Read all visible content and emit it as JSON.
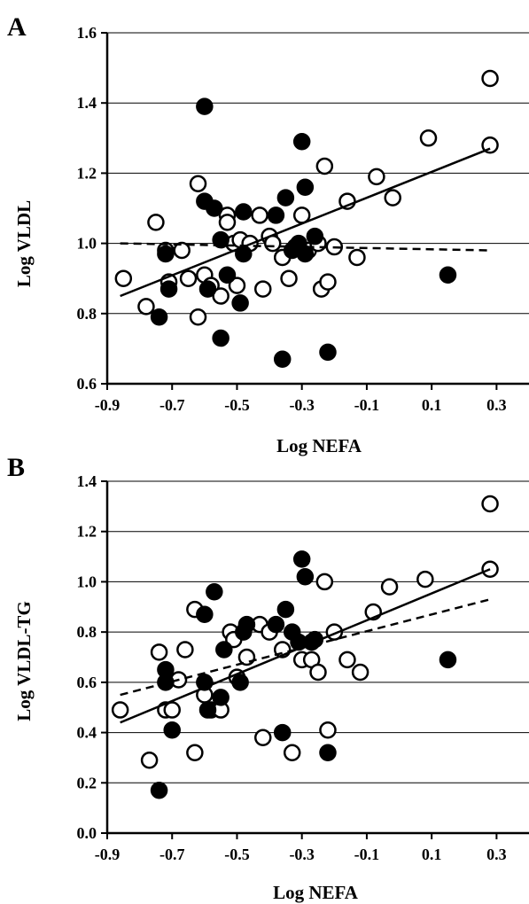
{
  "colors": {
    "axis": "#000000",
    "grid": "#000000",
    "open_marker_fill": "#ffffff",
    "filled_marker_fill": "#000000"
  },
  "chart_data": [
    {
      "panel_label": "A",
      "type": "scatter",
      "xlabel": "Log NEFA",
      "ylabel": "Log VLDL",
      "xlim": [
        -0.9,
        0.4
      ],
      "ylim": [
        0.6,
        1.6
      ],
      "x_ticks": [
        -0.9,
        -0.7,
        -0.5,
        -0.3,
        -0.1,
        0.1,
        0.3
      ],
      "x_tick_labels": [
        "-0.9",
        "-0.7",
        "-0.5",
        "-0.3",
        "-0.1",
        "0.1",
        "0.3"
      ],
      "y_ticks": [
        0.6,
        0.8,
        1.0,
        1.2,
        1.4,
        1.6
      ],
      "y_tick_labels": [
        "0.6",
        "0.8",
        "1.0",
        "1.2",
        "1.4",
        "1.6"
      ],
      "grid": "horizontal",
      "series": [
        {
          "marker": "open",
          "points": [
            [
              -0.85,
              0.9
            ],
            [
              -0.78,
              0.82
            ],
            [
              -0.75,
              1.06
            ],
            [
              -0.72,
              0.98
            ],
            [
              -0.71,
              0.89
            ],
            [
              -0.67,
              0.98
            ],
            [
              -0.65,
              0.9
            ],
            [
              -0.62,
              1.17
            ],
            [
              -0.62,
              0.79
            ],
            [
              -0.6,
              0.91
            ],
            [
              -0.58,
              0.88
            ],
            [
              -0.55,
              0.85
            ],
            [
              -0.53,
              1.08
            ],
            [
              -0.53,
              1.06
            ],
            [
              -0.51,
              1.0
            ],
            [
              -0.5,
              0.88
            ],
            [
              -0.49,
              1.01
            ],
            [
              -0.46,
              1.0
            ],
            [
              -0.43,
              1.08
            ],
            [
              -0.42,
              0.87
            ],
            [
              -0.4,
              1.02
            ],
            [
              -0.39,
              1.0
            ],
            [
              -0.36,
              0.96
            ],
            [
              -0.34,
              0.9
            ],
            [
              -0.32,
              0.99
            ],
            [
              -0.3,
              1.08
            ],
            [
              -0.28,
              0.98
            ],
            [
              -0.25,
              1.0
            ],
            [
              -0.24,
              0.87
            ],
            [
              -0.23,
              1.22
            ],
            [
              -0.22,
              0.89
            ],
            [
              -0.2,
              0.99
            ],
            [
              -0.16,
              1.12
            ],
            [
              -0.13,
              0.96
            ],
            [
              -0.07,
              1.19
            ],
            [
              -0.02,
              1.13
            ],
            [
              0.09,
              1.3
            ],
            [
              0.28,
              1.28
            ],
            [
              0.28,
              1.47
            ]
          ]
        },
        {
          "marker": "filled",
          "points": [
            [
              -0.74,
              0.79
            ],
            [
              -0.72,
              0.97
            ],
            [
              -0.71,
              0.87
            ],
            [
              -0.6,
              1.39
            ],
            [
              -0.6,
              1.12
            ],
            [
              -0.59,
              0.87
            ],
            [
              -0.57,
              1.1
            ],
            [
              -0.55,
              1.01
            ],
            [
              -0.55,
              0.73
            ],
            [
              -0.53,
              0.91
            ],
            [
              -0.49,
              0.83
            ],
            [
              -0.48,
              1.09
            ],
            [
              -0.48,
              0.97
            ],
            [
              -0.38,
              1.08
            ],
            [
              -0.36,
              0.67
            ],
            [
              -0.35,
              1.13
            ],
            [
              -0.33,
              0.98
            ],
            [
              -0.31,
              1.0
            ],
            [
              -0.3,
              1.29
            ],
            [
              -0.29,
              1.16
            ],
            [
              -0.29,
              0.97
            ],
            [
              -0.26,
              1.02
            ],
            [
              -0.22,
              0.69
            ],
            [
              0.15,
              0.91
            ]
          ]
        }
      ],
      "trendlines": [
        {
          "style": "solid",
          "x": [
            -0.86,
            0.28
          ],
          "y": [
            0.85,
            1.27
          ]
        },
        {
          "style": "dashed",
          "x": [
            -0.86,
            0.28
          ],
          "y": [
            1.0,
            0.98
          ]
        }
      ]
    },
    {
      "panel_label": "B",
      "type": "scatter",
      "xlabel": "Log NEFA",
      "ylabel": "Log VLDL-TG",
      "xlim": [
        -0.9,
        0.4
      ],
      "ylim": [
        0.0,
        1.4
      ],
      "x_ticks": [
        -0.9,
        -0.7,
        -0.5,
        -0.3,
        -0.1,
        0.1,
        0.3
      ],
      "x_tick_labels": [
        "-0.9",
        "-0.7",
        "-0.5",
        "-0.3",
        "-0.1",
        "0.1",
        "0.3"
      ],
      "y_ticks": [
        0.0,
        0.2,
        0.4,
        0.6,
        0.8,
        1.0,
        1.2,
        1.4
      ],
      "y_tick_labels": [
        "0.0",
        "0.2",
        "0.4",
        "0.6",
        "0.8",
        "1.0",
        "1.2",
        "1.4"
      ],
      "grid": "horizontal",
      "series": [
        {
          "marker": "open",
          "points": [
            [
              -0.86,
              0.49
            ],
            [
              -0.77,
              0.29
            ],
            [
              -0.74,
              0.72
            ],
            [
              -0.72,
              0.49
            ],
            [
              -0.7,
              0.49
            ],
            [
              -0.68,
              0.61
            ],
            [
              -0.66,
              0.73
            ],
            [
              -0.63,
              0.89
            ],
            [
              -0.63,
              0.32
            ],
            [
              -0.6,
              0.55
            ],
            [
              -0.58,
              0.49
            ],
            [
              -0.55,
              0.49
            ],
            [
              -0.52,
              0.8
            ],
            [
              -0.51,
              0.77
            ],
            [
              -0.5,
              0.62
            ],
            [
              -0.47,
              0.7
            ],
            [
              -0.43,
              0.83
            ],
            [
              -0.42,
              0.38
            ],
            [
              -0.4,
              0.8
            ],
            [
              -0.36,
              0.73
            ],
            [
              -0.33,
              0.32
            ],
            [
              -0.3,
              0.69
            ],
            [
              -0.27,
              0.69
            ],
            [
              -0.25,
              0.64
            ],
            [
              -0.23,
              1.0
            ],
            [
              -0.22,
              0.41
            ],
            [
              -0.2,
              0.8
            ],
            [
              -0.16,
              0.69
            ],
            [
              -0.12,
              0.64
            ],
            [
              -0.08,
              0.88
            ],
            [
              -0.03,
              0.98
            ],
            [
              0.08,
              1.01
            ],
            [
              0.28,
              1.05
            ],
            [
              0.28,
              1.31
            ]
          ]
        },
        {
          "marker": "filled",
          "points": [
            [
              -0.74,
              0.17
            ],
            [
              -0.72,
              0.6
            ],
            [
              -0.72,
              0.65
            ],
            [
              -0.7,
              0.41
            ],
            [
              -0.6,
              0.87
            ],
            [
              -0.6,
              0.6
            ],
            [
              -0.59,
              0.49
            ],
            [
              -0.57,
              0.96
            ],
            [
              -0.55,
              0.54
            ],
            [
              -0.54,
              0.73
            ],
            [
              -0.49,
              0.6
            ],
            [
              -0.48,
              0.8
            ],
            [
              -0.47,
              0.83
            ],
            [
              -0.38,
              0.83
            ],
            [
              -0.36,
              0.4
            ],
            [
              -0.35,
              0.89
            ],
            [
              -0.33,
              0.8
            ],
            [
              -0.31,
              0.76
            ],
            [
              -0.3,
              1.09
            ],
            [
              -0.29,
              1.02
            ],
            [
              -0.27,
              0.76
            ],
            [
              -0.26,
              0.77
            ],
            [
              -0.22,
              0.32
            ],
            [
              0.15,
              0.69
            ]
          ]
        }
      ],
      "trendlines": [
        {
          "style": "solid",
          "x": [
            -0.86,
            0.28
          ],
          "y": [
            0.44,
            1.05
          ]
        },
        {
          "style": "dashed",
          "x": [
            -0.86,
            0.28
          ],
          "y": [
            0.55,
            0.93
          ]
        }
      ]
    }
  ]
}
